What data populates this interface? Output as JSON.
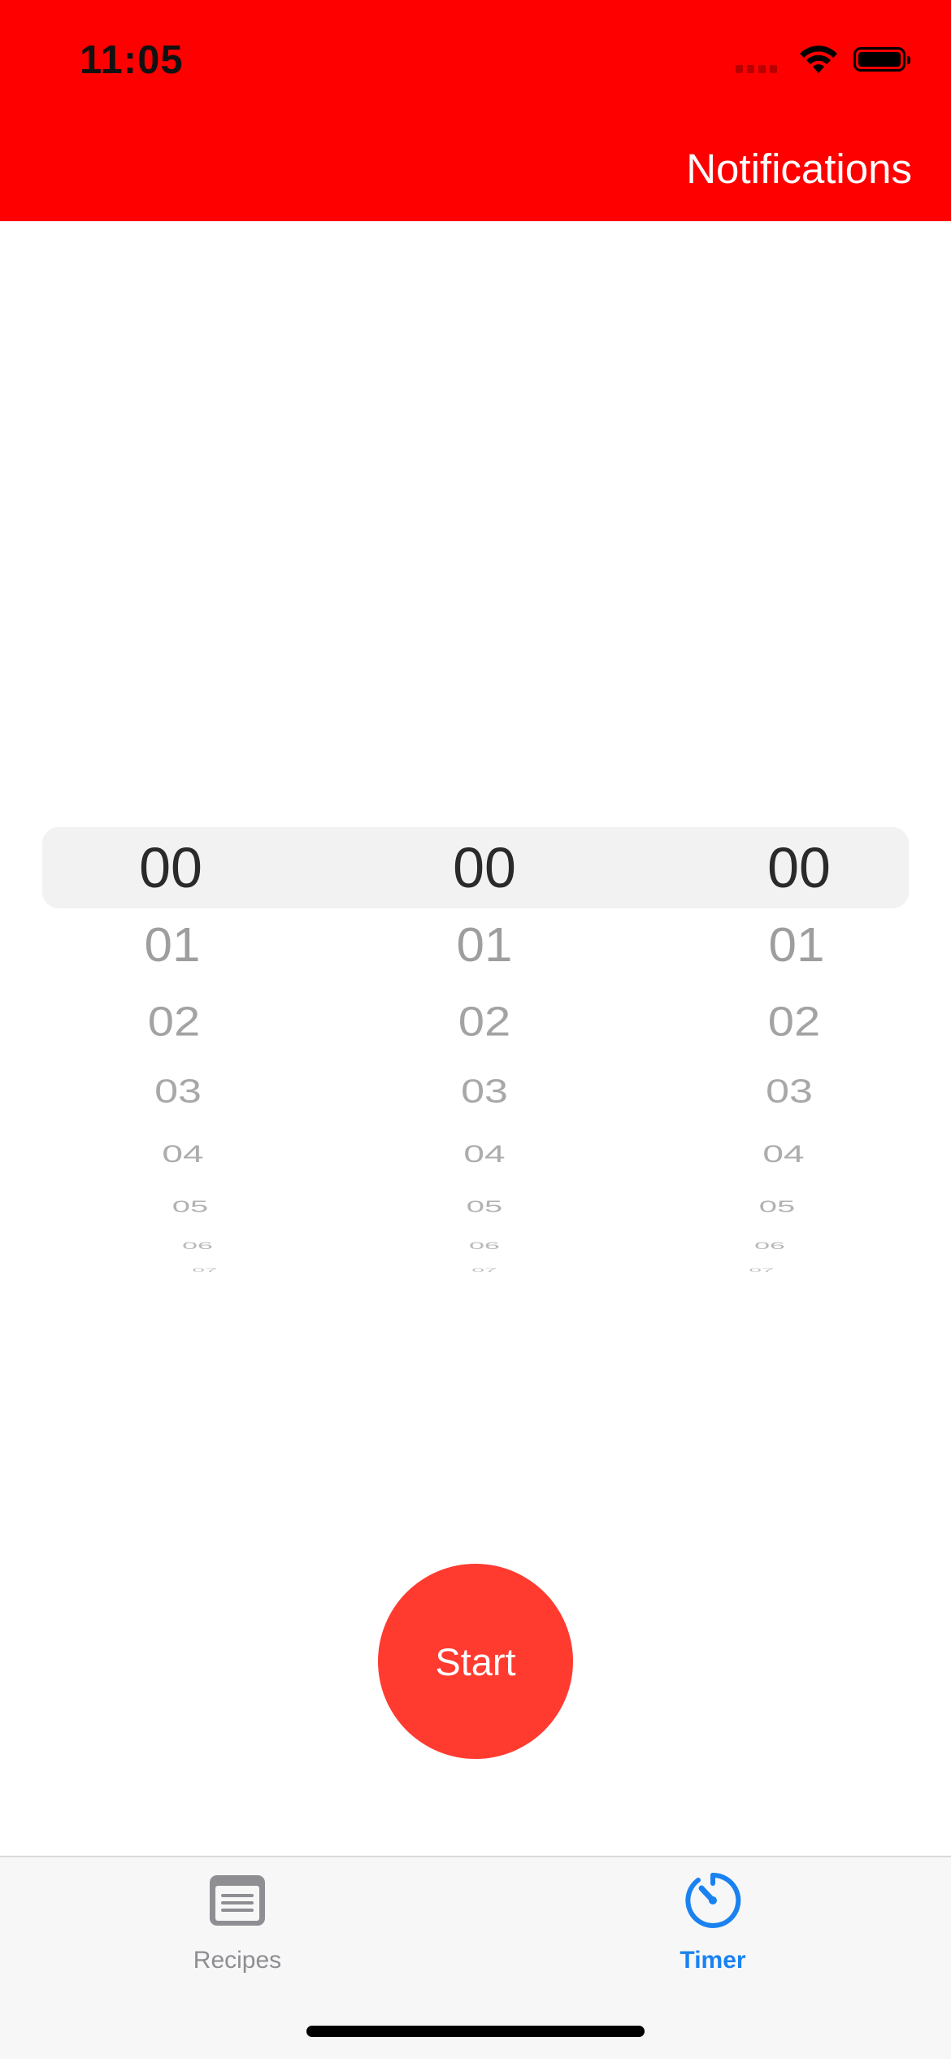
{
  "status_bar": {
    "time": "11:05"
  },
  "header": {
    "background_color": "#ff0000",
    "notifications_label": "Notifications"
  },
  "picker": {
    "columns": [
      {
        "id": "hours",
        "values": [
          "00",
          "01",
          "02",
          "03",
          "04",
          "05",
          "06",
          "07"
        ]
      },
      {
        "id": "minutes",
        "values": [
          "00",
          "01",
          "02",
          "03",
          "04",
          "05",
          "06",
          "07"
        ]
      },
      {
        "id": "seconds",
        "values": [
          "00",
          "01",
          "02",
          "03",
          "04",
          "05",
          "06",
          "07"
        ]
      }
    ],
    "selected": [
      "00",
      "00",
      "00"
    ]
  },
  "start_button": {
    "label": "Start",
    "color": "#ff3b30"
  },
  "tab_bar": {
    "tabs": [
      {
        "label": "Recipes",
        "icon": "recipes-list-icon",
        "selected": false
      },
      {
        "label": "Timer",
        "icon": "timer-icon",
        "selected": true,
        "color": "#1a82f0"
      }
    ]
  }
}
